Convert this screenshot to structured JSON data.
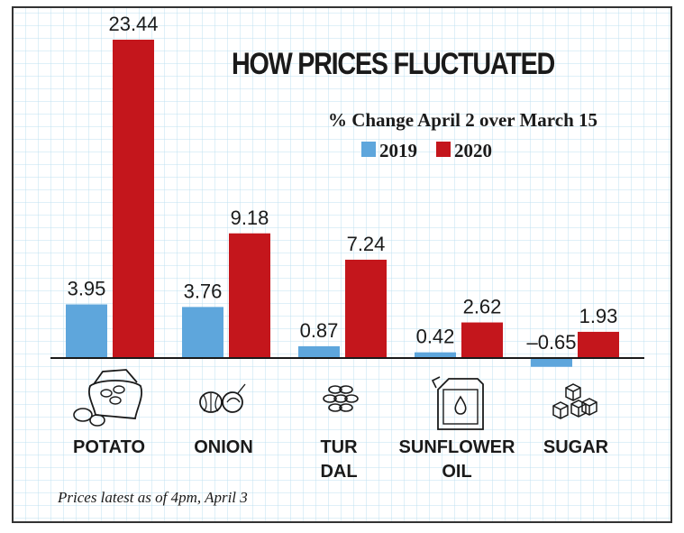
{
  "colors": {
    "series_2019": "#5ea6dc",
    "series_2020": "#c4161c",
    "grid": "#bfe0f0",
    "frame": "#333333"
  },
  "chart_data": {
    "type": "bar",
    "title": "HOW PRICES FLUCTUATED",
    "subtitle": "% Change April 2 over March 15",
    "categories": [
      "POTATO",
      "ONION",
      "TUR DAL",
      "SUNFLOWER OIL",
      "SUGAR"
    ],
    "category_lines": [
      [
        "POTATO"
      ],
      [
        "ONION"
      ],
      [
        "TUR",
        "DAL"
      ],
      [
        "SUNFLOWER",
        "OIL"
      ],
      [
        "SUGAR"
      ]
    ],
    "category_icons": [
      "potato-sack-icon",
      "onion-icon",
      "tur-dal-icon",
      "oil-can-icon",
      "sugar-cubes-icon"
    ],
    "series": [
      {
        "name": "2019",
        "values": [
          3.95,
          3.76,
          0.87,
          0.42,
          -0.65
        ],
        "labels": [
          "3.95",
          "3.76",
          "0.87",
          "0.42",
          "–0.65"
        ]
      },
      {
        "name": "2020",
        "values": [
          23.44,
          9.18,
          7.24,
          2.62,
          1.93
        ],
        "labels": [
          "23.44",
          "9.18",
          "7.24",
          "2.62",
          "1.93"
        ]
      }
    ],
    "ylim": [
      -1,
      24
    ],
    "grid": true,
    "legend_position": "top-right",
    "note": "Prices latest as of 4pm, April 3"
  }
}
